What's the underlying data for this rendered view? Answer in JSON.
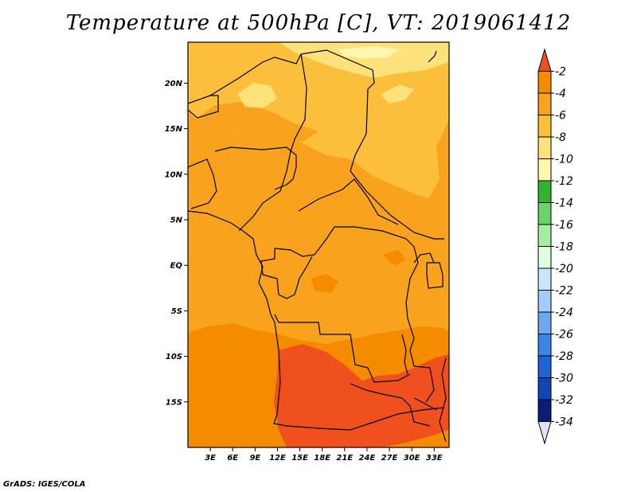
{
  "title": "Temperature at 500hPa [C], VT: 2019061412",
  "credit": "GrADS: IGES/COLA",
  "map": {
    "lon_range": [
      0,
      35
    ],
    "lat_range": [
      -20,
      24.5
    ],
    "lat_ticks": [
      {
        "lat": 20,
        "label": "20N"
      },
      {
        "lat": 15,
        "label": "15N"
      },
      {
        "lat": 10,
        "label": "10N"
      },
      {
        "lat": 5,
        "label": "5N"
      },
      {
        "lat": 0,
        "label": "EQ"
      },
      {
        "lat": -5,
        "label": "5S"
      },
      {
        "lat": -10,
        "label": "10S"
      },
      {
        "lat": -15,
        "label": "15S"
      }
    ],
    "lon_ticks": [
      {
        "lon": 3,
        "label": "3E"
      },
      {
        "lon": 6,
        "label": "6E"
      },
      {
        "lon": 9,
        "label": "9E"
      },
      {
        "lon": 12,
        "label": "12E"
      },
      {
        "lon": 15,
        "label": "15E"
      },
      {
        "lon": 18,
        "label": "18E"
      },
      {
        "lon": 21,
        "label": "21E"
      },
      {
        "lon": 24,
        "label": "24E"
      },
      {
        "lon": 27,
        "label": "27E"
      },
      {
        "lon": 30,
        "label": "30E"
      },
      {
        "lon": 33,
        "label": "33E"
      }
    ]
  },
  "colorbar": {
    "labels": [
      "-2",
      "-4",
      "-6",
      "-8",
      "-10",
      "-12",
      "-14",
      "-16",
      "-18",
      "-20",
      "-22",
      "-24",
      "-26",
      "-28",
      "-30",
      "-32",
      "-34"
    ],
    "colors": [
      "#f0501e",
      "#f58c00",
      "#f9a21e",
      "#fbbf3c",
      "#fde17a",
      "#fff7b0",
      "#32b432",
      "#6ad46a",
      "#a4eea4",
      "#e0ffe0",
      "#c8e6ff",
      "#a2cdf8",
      "#6ea9f0",
      "#3c84e6",
      "#1e64d2",
      "#0f46b4",
      "#0a1e78",
      "#e0e0f8"
    ]
  }
}
